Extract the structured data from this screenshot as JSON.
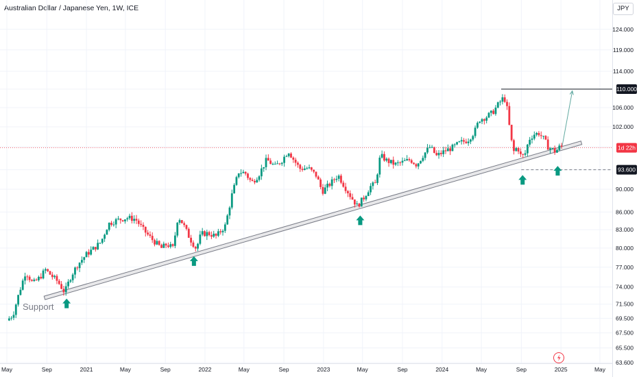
{
  "header": {
    "title": "Australian Dollar / Japanese Yen, 1W, ICE",
    "currency_label": "JPY"
  },
  "colors": {
    "up": "#089981",
    "down": "#f23645",
    "grid": "#f0f3fa",
    "axis_text": "#131722",
    "support_line_fill": "#e8e8ea",
    "support_line_stroke": "#787b86",
    "target_line": "#131722",
    "projection_arrow": "#5fa8a0",
    "arrow_marker": "#089981",
    "current_price": "#f23645",
    "dotted_line": "#9598a1"
  },
  "chart_data": {
    "type": "candlestick",
    "title": "Australian Dollar / Japanese Yen, 1W, ICE",
    "x_axis": {
      "start": "2020-05-01",
      "end": "2025-05-01",
      "tick_labels": [
        "May",
        "Sep",
        "2021",
        "May",
        "Sep",
        "2022",
        "May",
        "Sep",
        "2023",
        "May",
        "Sep",
        "2024",
        "May",
        "Sep",
        "2025",
        "May"
      ],
      "tick_dates": [
        "2020-05-01",
        "2020-09-01",
        "2021-01-01",
        "2021-05-01",
        "2021-09-01",
        "2022-01-01",
        "2022-05-01",
        "2022-09-01",
        "2023-01-01",
        "2023-05-01",
        "2023-09-01",
        "2024-01-01",
        "2024-05-01",
        "2024-09-01",
        "2025-01-01",
        "2025-05-01"
      ]
    },
    "y_axis": {
      "scale": "log",
      "range": [
        63.6,
        129
      ],
      "tick_values": [
        124,
        119,
        114,
        110,
        106,
        102,
        98,
        93.6,
        90,
        86,
        83,
        80,
        77,
        74,
        71.5,
        69.5,
        67.5,
        65.5,
        63.6
      ],
      "tick_labels": [
        "124.000",
        "119.000",
        "114.000",
        "110.000",
        "106.000",
        "102.000",
        "98.000",
        "93.600",
        "90.000",
        "86.000",
        "83.000",
        "80.000",
        "77.000",
        "74.000",
        "71.500",
        "69.500",
        "67.500",
        "65.500",
        "63.600"
      ]
    },
    "close_path": [
      [
        "2020-05-01",
        69.2
      ],
      [
        "2020-05-20",
        70.0
      ],
      [
        "2020-06-08",
        73.2
      ],
      [
        "2020-06-28",
        76.3
      ],
      [
        "2020-07-20",
        74.5
      ],
      [
        "2020-08-10",
        75.4
      ],
      [
        "2020-08-28",
        76.6
      ],
      [
        "2020-09-15",
        75.7
      ],
      [
        "2020-10-05",
        74.8
      ],
      [
        "2020-10-26",
        73.2
      ],
      [
        "2020-11-15",
        75.7
      ],
      [
        "2020-12-05",
        77.4
      ],
      [
        "2021-01-01",
        79.0
      ],
      [
        "2021-01-25",
        80.0
      ],
      [
        "2021-02-15",
        81.0
      ],
      [
        "2021-03-10",
        84.0
      ],
      [
        "2021-04-05",
        84.6
      ],
      [
        "2021-05-05",
        85.0
      ],
      [
        "2021-06-01",
        84.8
      ],
      [
        "2021-06-25",
        83.0
      ],
      [
        "2021-07-20",
        81.5
      ],
      [
        "2021-08-20",
        80.0
      ],
      [
        "2021-09-05",
        80.6
      ],
      [
        "2021-09-25",
        80.0
      ],
      [
        "2021-10-10",
        85.3
      ],
      [
        "2021-10-25",
        84.0
      ],
      [
        "2021-11-15",
        81.6
      ],
      [
        "2021-12-05",
        79.9
      ],
      [
        "2021-12-20",
        82.3
      ],
      [
        "2022-01-10",
        82.4
      ],
      [
        "2022-02-05",
        81.9
      ],
      [
        "2022-03-05",
        83.7
      ],
      [
        "2022-03-25",
        89.0
      ],
      [
        "2022-04-15",
        93.2
      ],
      [
        "2022-05-05",
        93.0
      ],
      [
        "2022-05-25",
        91.2
      ],
      [
        "2022-06-15",
        92.6
      ],
      [
        "2022-07-10",
        95.5
      ],
      [
        "2022-08-05",
        94.2
      ],
      [
        "2022-08-25",
        95.3
      ],
      [
        "2022-09-15",
        97.2
      ],
      [
        "2022-10-01",
        95.5
      ],
      [
        "2022-10-20",
        93.8
      ],
      [
        "2022-11-15",
        93.9
      ],
      [
        "2022-12-10",
        92.5
      ],
      [
        "2022-12-28",
        89.6
      ],
      [
        "2023-01-20",
        90.9
      ],
      [
        "2023-02-15",
        92.6
      ],
      [
        "2023-03-05",
        90.7
      ],
      [
        "2023-03-25",
        88.8
      ],
      [
        "2023-04-15",
        87.0
      ],
      [
        "2023-05-05",
        88.5
      ],
      [
        "2023-05-25",
        90.5
      ],
      [
        "2023-06-10",
        91.0
      ],
      [
        "2023-06-25",
        96.3
      ],
      [
        "2023-07-15",
        95.3
      ],
      [
        "2023-08-10",
        94.6
      ],
      [
        "2023-09-01",
        95.0
      ],
      [
        "2023-09-25",
        95.5
      ],
      [
        "2023-10-15",
        94.5
      ],
      [
        "2023-11-05",
        96.5
      ],
      [
        "2023-11-25",
        98.0
      ],
      [
        "2023-12-15",
        96.2
      ],
      [
        "2024-01-10",
        97.2
      ],
      [
        "2024-02-01",
        97.8
      ],
      [
        "2024-02-25",
        98.8
      ],
      [
        "2024-03-20",
        99.3
      ],
      [
        "2024-04-10",
        101.0
      ],
      [
        "2024-04-25",
        103.5
      ],
      [
        "2024-05-15",
        104.0
      ],
      [
        "2024-06-05",
        105.0
      ],
      [
        "2024-06-25",
        107.0
      ],
      [
        "2024-07-10",
        108.3
      ],
      [
        "2024-07-20",
        105.5
      ],
      [
        "2024-07-30",
        100.0
      ],
      [
        "2024-08-08",
        97.0
      ],
      [
        "2024-08-20",
        98.0
      ],
      [
        "2024-09-01",
        96.0
      ],
      [
        "2024-09-12",
        96.5
      ],
      [
        "2024-09-25",
        99.5
      ],
      [
        "2024-10-10",
        100.5
      ],
      [
        "2024-10-25",
        100.7
      ],
      [
        "2024-11-10",
        99.5
      ],
      [
        "2024-11-22",
        98.0
      ],
      [
        "2024-12-03",
        97.6
      ],
      [
        "2024-12-15",
        97.0
      ],
      [
        "2024-12-28",
        98.0
      ],
      [
        "2025-01-05",
        98.0
      ]
    ],
    "support_line": {
      "label": "Support",
      "start": [
        "2020-08-25",
        72.4
      ],
      "end": [
        "2025-03-05",
        98.8
      ]
    },
    "target": {
      "label": "110.000",
      "value": 110,
      "from_date": "2024-07-01",
      "arrow_start": [
        "2025-01-05",
        98.2
      ],
      "arrow_end": [
        "2025-02-05",
        109.6
      ]
    },
    "level_93_6": {
      "label": "93.600",
      "value": 93.6,
      "from_date": "2024-09-01",
      "style": "dashed"
    },
    "current_price": {
      "value": 97.8,
      "countdown_label": "1d 22h",
      "style": "dotted"
    },
    "markers": [
      {
        "date": "2020-11-01",
        "value": 72.3
      },
      {
        "date": "2021-11-28",
        "value": 78.7
      },
      {
        "date": "2023-04-24",
        "value": 85.4
      },
      {
        "date": "2024-09-05",
        "value": 92.6
      },
      {
        "date": "2024-12-22",
        "value": 94.3
      }
    ]
  }
}
